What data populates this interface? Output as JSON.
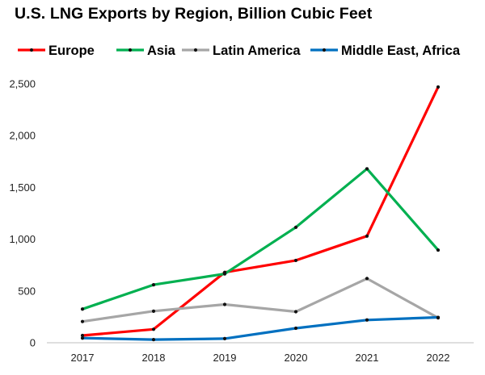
{
  "chart_data": {
    "type": "line",
    "title": "U.S. LNG Exports by Region, Billion Cubic Feet",
    "xlabel": "",
    "ylabel": "",
    "x": [
      "2017",
      "2018",
      "2019",
      "2020",
      "2021",
      "2022"
    ],
    "ylim": [
      0,
      2500
    ],
    "yticks": [
      0,
      500,
      1000,
      1500,
      2000,
      2500
    ],
    "ytick_labels": [
      "0",
      "500",
      "1,000",
      "1,500",
      "2,000",
      "2,500"
    ],
    "grid": false,
    "legend_position": "top",
    "series": [
      {
        "name": "Europe",
        "color": "#ff0000",
        "values": [
          70,
          130,
          680,
          795,
          1030,
          2470
        ]
      },
      {
        "name": "Asia",
        "color": "#00b050",
        "values": [
          325,
          560,
          665,
          1115,
          1680,
          895
        ]
      },
      {
        "name": "Latin America",
        "color": "#a6a6a6",
        "values": [
          205,
          305,
          370,
          300,
          620,
          240
        ]
      },
      {
        "name": "Middle East, Africa",
        "color": "#0070c0",
        "values": [
          45,
          30,
          40,
          140,
          220,
          245
        ]
      }
    ]
  }
}
